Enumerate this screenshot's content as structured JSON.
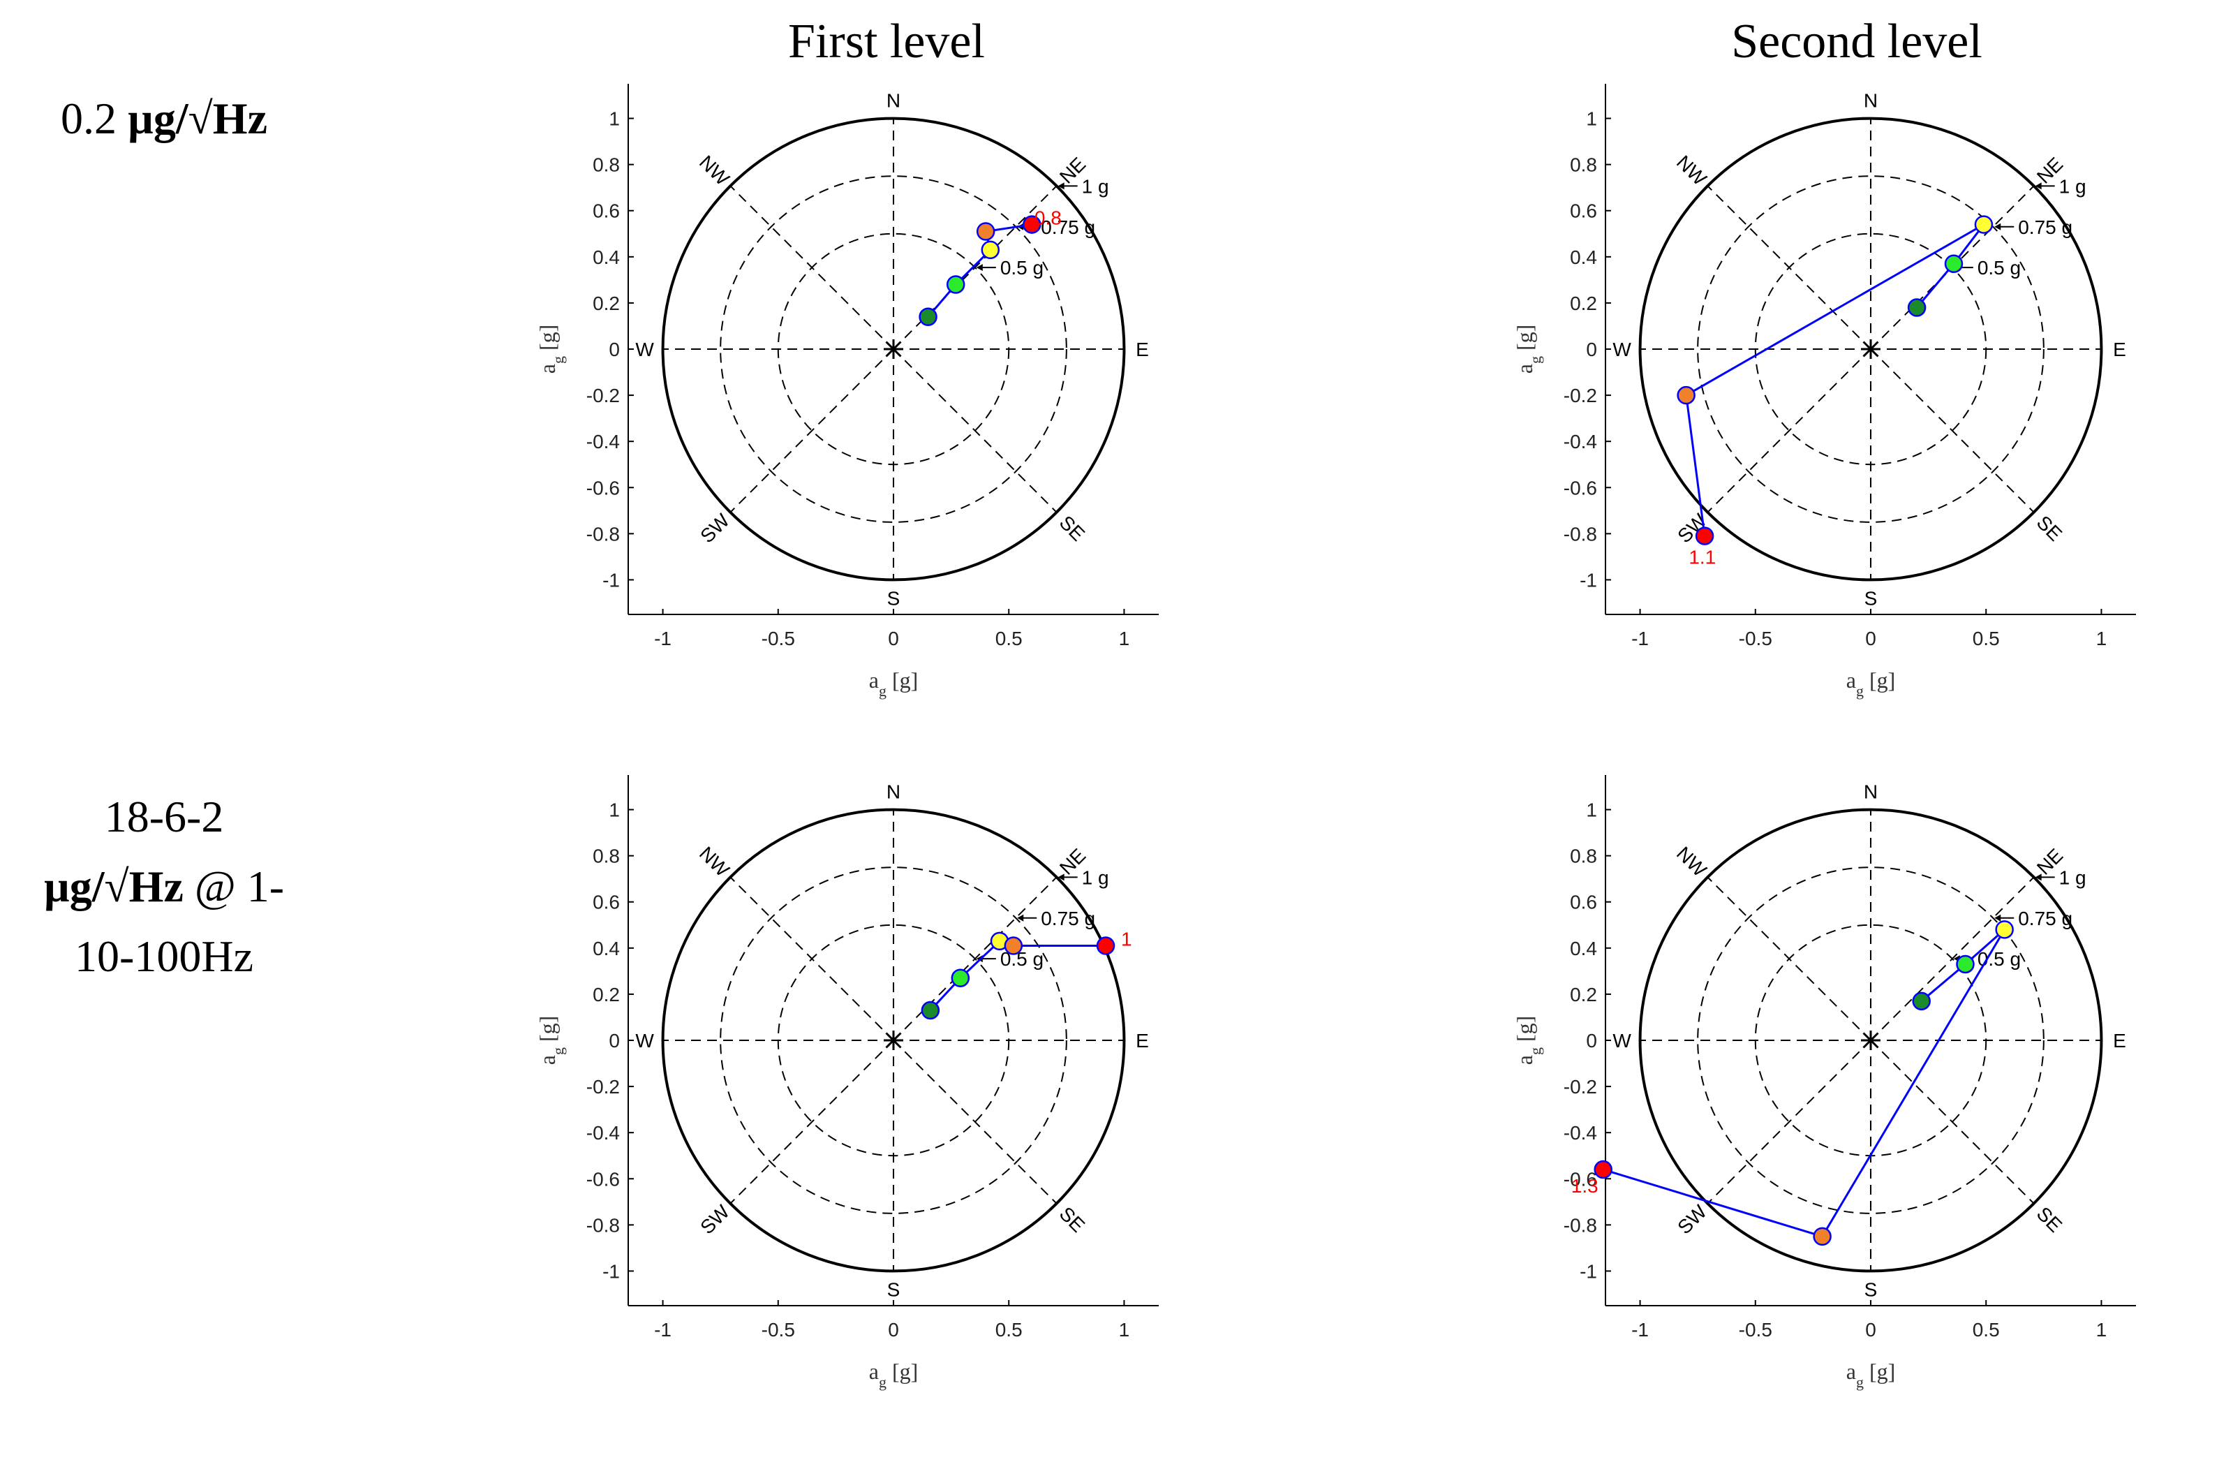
{
  "column_titles": [
    "First level",
    "Second level"
  ],
  "row_labels": [
    {
      "value": "0.2",
      "unit": "µg/√Hz"
    },
    {
      "line1": "18-6-2",
      "unit": "µg/√Hz",
      "line2_tail": "@ 1-",
      "line3": "10-100Hz"
    }
  ],
  "colors": {
    "path": "#0000ff",
    "level_colors": [
      "#1a8a2a",
      "#2bea2b",
      "#ffff33",
      "#f0802a",
      "#ff0000"
    ],
    "highlight": "#ff0000"
  },
  "chart_data": [
    {
      "type": "scatter",
      "name": "First level, 0.2 µg/√Hz",
      "xlabel": "a",
      "xlabel_sub": "g",
      "xlabel_unit": "[g]",
      "ylabel": "a",
      "ylabel_sub": "g",
      "ylabel_unit": "[g]",
      "xlim": [
        -1.15,
        1.15
      ],
      "ylim": [
        -1.15,
        1.15
      ],
      "xticks": [
        -1,
        -0.5,
        0,
        0.5,
        1
      ],
      "xtick_labels": [
        "-1",
        "-0.5",
        "0",
        "0.5",
        "1"
      ],
      "yticks": [
        1,
        0.8,
        0.6,
        0.4,
        0.2,
        0,
        -0.2,
        -0.4,
        -0.6,
        -0.8,
        -1
      ],
      "ytick_labels": [
        "1",
        "0.8",
        "0.6",
        "0.4",
        "0.2",
        "0",
        "-0.2",
        "-0.4",
        "-0.6",
        "-0.8",
        "-1"
      ],
      "compass": [
        "N",
        "NE",
        "E",
        "SE",
        "S",
        "SW",
        "W",
        "NW"
      ],
      "rings": [
        {
          "r": 0.5,
          "label": "0.5 g"
        },
        {
          "r": 0.75,
          "label": "0.75 g"
        },
        {
          "r": 1,
          "label": "1 g"
        }
      ],
      "points": [
        {
          "x": 0.15,
          "y": 0.14
        },
        {
          "x": 0.27,
          "y": 0.28
        },
        {
          "x": 0.42,
          "y": 0.43
        },
        {
          "x": 0.4,
          "y": 0.51
        },
        {
          "x": 0.6,
          "y": 0.54
        }
      ],
      "peak_label": {
        "text": "0.8",
        "x": 0.67,
        "y": 0.57
      }
    },
    {
      "type": "scatter",
      "name": "Second level, 0.2 µg/√Hz",
      "xlabel": "a",
      "xlabel_sub": "g",
      "xlabel_unit": "[g]",
      "ylabel": "a",
      "ylabel_sub": "g",
      "ylabel_unit": "[g]",
      "xlim": [
        -1.15,
        1.15
      ],
      "ylim": [
        -1.15,
        1.15
      ],
      "xticks": [
        -1,
        -0.5,
        0,
        0.5,
        1
      ],
      "xtick_labels": [
        "-1",
        "-0.5",
        "0",
        "0.5",
        "1"
      ],
      "yticks": [
        1,
        0.8,
        0.6,
        0.4,
        0.2,
        0,
        -0.2,
        -0.4,
        -0.6,
        -0.8,
        -1
      ],
      "ytick_labels": [
        "1",
        "0.8",
        "0.6",
        "0.4",
        "0.2",
        "0",
        "-0.2",
        "-0.4",
        "-0.6",
        "-0.8",
        "-1"
      ],
      "compass": [
        "N",
        "NE",
        "E",
        "SE",
        "S",
        "SW",
        "W",
        "NW"
      ],
      "rings": [
        {
          "r": 0.5,
          "label": "0.5 g"
        },
        {
          "r": 0.75,
          "label": "0.75 g"
        },
        {
          "r": 1,
          "label": "1 g"
        }
      ],
      "points": [
        {
          "x": 0.2,
          "y": 0.18
        },
        {
          "x": 0.36,
          "y": 0.37
        },
        {
          "x": 0.49,
          "y": 0.54
        },
        {
          "x": -0.8,
          "y": -0.2
        },
        {
          "x": -0.72,
          "y": -0.81
        }
      ],
      "peak_label": {
        "text": "1.1",
        "x": -0.73,
        "y": -0.9
      }
    },
    {
      "type": "scatter",
      "name": "First level, 18-6-2 µg/√Hz @ 1-10-100Hz",
      "xlabel": "a",
      "xlabel_sub": "g",
      "xlabel_unit": "[g]",
      "ylabel": "a",
      "ylabel_sub": "g",
      "ylabel_unit": "[g]",
      "xlim": [
        -1.15,
        1.15
      ],
      "ylim": [
        -1.15,
        1.15
      ],
      "xticks": [
        -1,
        -0.5,
        0,
        0.5,
        1
      ],
      "xtick_labels": [
        "-1",
        "-0.5",
        "0",
        "0.5",
        "1"
      ],
      "yticks": [
        1,
        0.8,
        0.6,
        0.4,
        0.2,
        0,
        -0.2,
        -0.4,
        -0.6,
        -0.8,
        -1
      ],
      "ytick_labels": [
        "1",
        "0.8",
        "0.6",
        "0.4",
        "0.2",
        "0",
        "-0.2",
        "-0.4",
        "-0.6",
        "-0.8",
        "-1"
      ],
      "compass": [
        "N",
        "NE",
        "E",
        "SE",
        "S",
        "SW",
        "W",
        "NW"
      ],
      "rings": [
        {
          "r": 0.5,
          "label": "0.5 g"
        },
        {
          "r": 0.75,
          "label": "0.75 g"
        },
        {
          "r": 1,
          "label": "1 g"
        }
      ],
      "points": [
        {
          "x": 0.16,
          "y": 0.13
        },
        {
          "x": 0.29,
          "y": 0.27
        },
        {
          "x": 0.46,
          "y": 0.43
        },
        {
          "x": 0.52,
          "y": 0.41
        },
        {
          "x": 0.92,
          "y": 0.41
        }
      ],
      "peak_label": {
        "text": "1",
        "x": 1.01,
        "y": 0.44
      }
    },
    {
      "type": "scatter",
      "name": "Second level, 18-6-2 µg/√Hz @ 1-10-100Hz",
      "xlabel": "a",
      "xlabel_sub": "g",
      "xlabel_unit": "[g]",
      "ylabel": "a",
      "ylabel_sub": "g",
      "ylabel_unit": "[g]",
      "xlim": [
        -1.15,
        1.15
      ],
      "ylim": [
        -1.15,
        1.15
      ],
      "xticks": [
        -1,
        -0.5,
        0,
        0.5,
        1
      ],
      "xtick_labels": [
        "-1",
        "-0.5",
        "0",
        "0.5",
        "1"
      ],
      "yticks": [
        1,
        0.8,
        0.6,
        0.4,
        0.2,
        0,
        -0.2,
        -0.4,
        -0.6,
        -0.8,
        -1
      ],
      "ytick_labels": [
        "1",
        "0.8",
        "0.6",
        "0.4",
        "0.2",
        "0",
        "-0.2",
        "-0.4",
        "-0.6",
        "-0.8",
        "-1"
      ],
      "compass": [
        "N",
        "NE",
        "E",
        "SE",
        "S",
        "SW",
        "W",
        "NW"
      ],
      "rings": [
        {
          "r": 0.5,
          "label": "0.5 g"
        },
        {
          "r": 0.75,
          "label": "0.75 g"
        },
        {
          "r": 1,
          "label": "1 g"
        }
      ],
      "points": [
        {
          "x": 0.22,
          "y": 0.17
        },
        {
          "x": 0.41,
          "y": 0.33
        },
        {
          "x": 0.58,
          "y": 0.48
        },
        {
          "x": -0.21,
          "y": -0.85
        },
        {
          "x": -1.16,
          "y": -0.56
        }
      ],
      "peak_label": {
        "text": "1.3",
        "x": -1.24,
        "y": -0.63
      }
    }
  ]
}
